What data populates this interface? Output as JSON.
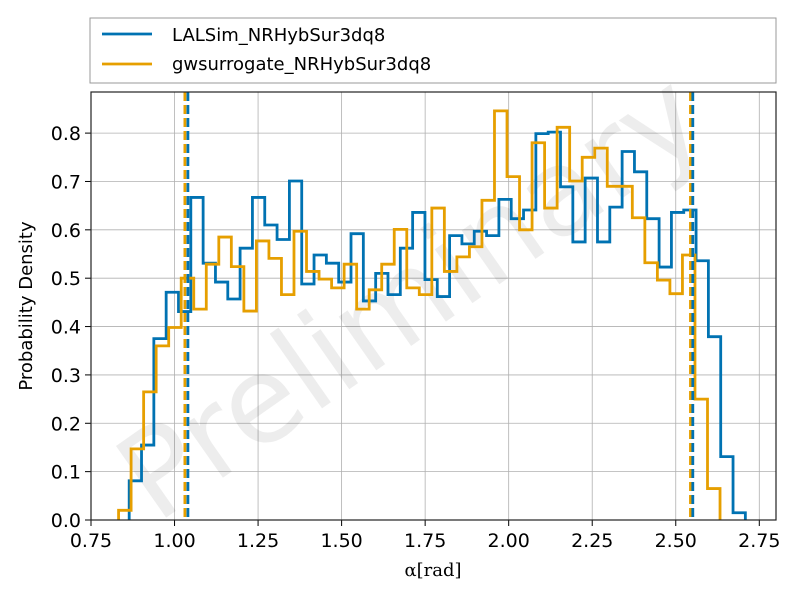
{
  "chart_data": {
    "type": "histogram",
    "xlabel": "α[rad]",
    "ylabel": "Probability Density",
    "xlim": [
      0.75,
      2.8
    ],
    "ylim": [
      0.0,
      0.885
    ],
    "x_ticks": [
      "0.75",
      "1.00",
      "1.25",
      "1.50",
      "1.75",
      "2.00",
      "2.25",
      "2.50",
      "2.75"
    ],
    "y_ticks": [
      "0.0",
      "0.1",
      "0.2",
      "0.3",
      "0.4",
      "0.5",
      "0.6",
      "0.7",
      "0.8"
    ],
    "grid": true,
    "legend_position": "above plot, full width",
    "watermark": "Preliminary",
    "series": [
      {
        "name": "LALSim_NRHybSur3dq8",
        "color": "#0072B2",
        "bin_start": 0.8643,
        "bin_width": 0.03688,
        "values": [
          0.081,
          0.155,
          0.375,
          0.471,
          0.431,
          0.667,
          0.531,
          0.492,
          0.457,
          0.562,
          0.667,
          0.61,
          0.58,
          0.701,
          0.488,
          0.548,
          0.531,
          0.492,
          0.592,
          0.453,
          0.51,
          0.466,
          0.562,
          0.636,
          0.497,
          0.462,
          0.588,
          0.571,
          0.597,
          0.588,
          0.663,
          0.623,
          0.641,
          0.799,
          0.802,
          0.689,
          0.575,
          0.707,
          0.575,
          0.647,
          0.762,
          0.72,
          0.623,
          0.523,
          0.636,
          0.641,
          0.536,
          0.379,
          0.131,
          0.015
        ]
      },
      {
        "name": "gwsurrogate_NRHybSur3dq8",
        "color": "#E69F00",
        "bin_start": 0.8325,
        "bin_width": 0.0375,
        "values": [
          0.02,
          0.147,
          0.265,
          0.36,
          0.398,
          0.5,
          0.436,
          0.529,
          0.585,
          0.524,
          0.432,
          0.577,
          0.541,
          0.466,
          0.597,
          0.514,
          0.498,
          0.48,
          0.529,
          0.436,
          0.476,
          0.529,
          0.601,
          0.48,
          0.466,
          0.645,
          0.514,
          0.544,
          0.565,
          0.661,
          0.846,
          0.71,
          0.6,
          0.78,
          0.645,
          0.812,
          0.701,
          0.75,
          0.769,
          0.69,
          0.69,
          0.625,
          0.532,
          0.496,
          0.468,
          0.548,
          0.25,
          0.065
        ]
      }
    ],
    "vlines": [
      {
        "x": 1.031,
        "color": "#E69F00",
        "style": "dashed"
      },
      {
        "x": 1.04,
        "color": "#0072B2",
        "style": "dashed"
      },
      {
        "x": 2.544,
        "color": "#E69F00",
        "style": "dashed"
      },
      {
        "x": 2.551,
        "color": "#0072B2",
        "style": "dashed"
      }
    ]
  }
}
